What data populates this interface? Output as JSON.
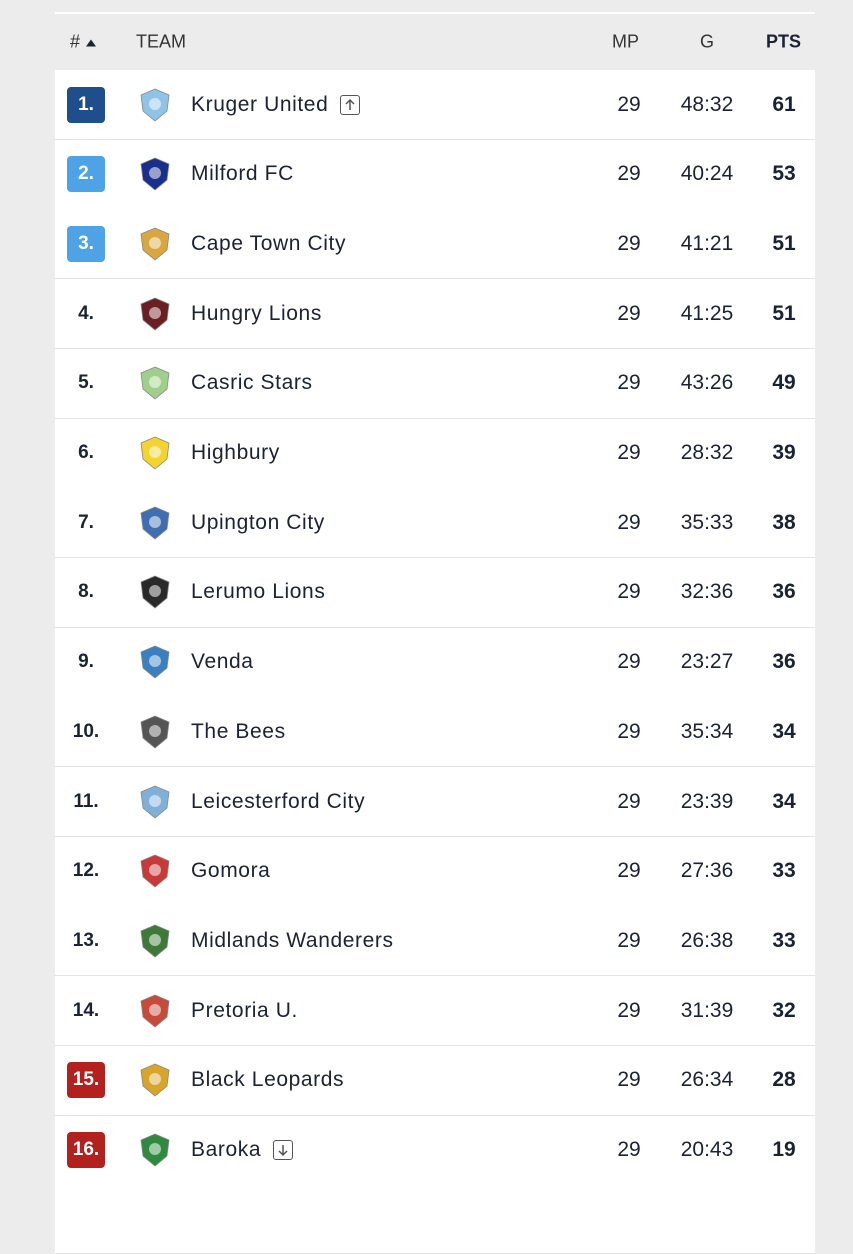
{
  "header": {
    "rank": "#",
    "team": "TEAM",
    "mp": "MP",
    "goals": "G",
    "points": "PTS"
  },
  "table": {
    "rows": [
      {
        "rank": "1.",
        "team": "Kruger United",
        "mp": 29,
        "goals": "48:32",
        "points": 61
      },
      {
        "rank": "2.",
        "team": "Milford FC",
        "mp": 29,
        "goals": "40:24",
        "points": 53
      },
      {
        "rank": "3.",
        "team": "Cape Town City",
        "mp": 29,
        "goals": "41:21",
        "points": 51
      },
      {
        "rank": "4.",
        "team": "Hungry Lions",
        "mp": 29,
        "goals": "41:25",
        "points": 51
      },
      {
        "rank": "5.",
        "team": "Casric Stars",
        "mp": 29,
        "goals": "43:26",
        "points": 49
      },
      {
        "rank": "6.",
        "team": "Highbury",
        "mp": 29,
        "goals": "28:32",
        "points": 39
      },
      {
        "rank": "7.",
        "team": "Upington City",
        "mp": 29,
        "goals": "35:33",
        "points": 38
      },
      {
        "rank": "8.",
        "team": "Lerumo Lions",
        "mp": 29,
        "goals": "32:36",
        "points": 36
      },
      {
        "rank": "9.",
        "team": "Venda",
        "mp": 29,
        "goals": "23:27",
        "points": 36
      },
      {
        "rank": "10.",
        "team": "The Bees",
        "mp": 29,
        "goals": "35:34",
        "points": 34
      },
      {
        "rank": "11.",
        "team": "Leicesterford City",
        "mp": 29,
        "goals": "23:39",
        "points": 34
      },
      {
        "rank": "12.",
        "team": "Gomora",
        "mp": 29,
        "goals": "27:36",
        "points": 33
      },
      {
        "rank": "13.",
        "team": "Midlands Wanderers",
        "mp": 29,
        "goals": "26:38",
        "points": 33
      },
      {
        "rank": "14.",
        "team": "Pretoria U.",
        "mp": 29,
        "goals": "31:39",
        "points": 32
      },
      {
        "rank": "15.",
        "team": "Black Leopards",
        "mp": 29,
        "goals": "26:34",
        "points": 28
      },
      {
        "rank": "16.",
        "team": "Baroka",
        "mp": 29,
        "goals": "20:43",
        "points": 19
      }
    ]
  }
}
